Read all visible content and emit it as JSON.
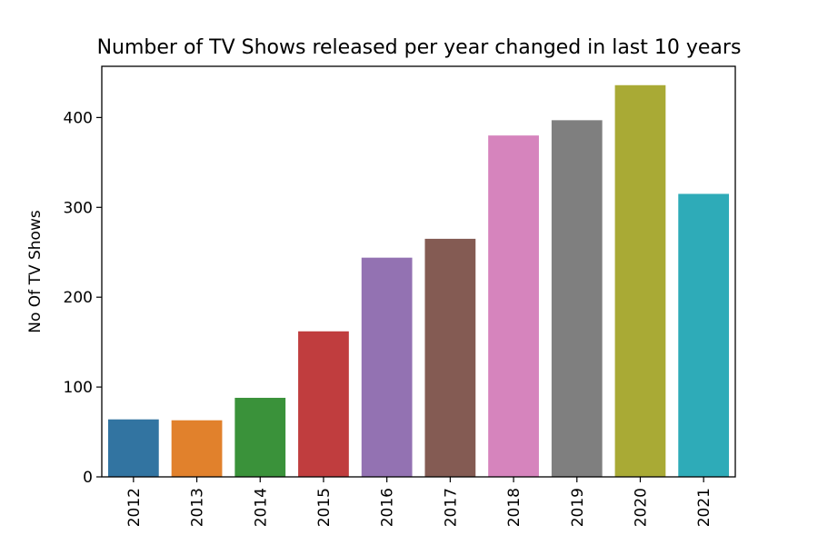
{
  "chart_data": {
    "type": "bar",
    "title": "Number of TV Shows released per year changed in last 10 years",
    "xlabel": "",
    "ylabel": "No Of TV Shows",
    "categories": [
      "2012",
      "2013",
      "2014",
      "2015",
      "2016",
      "2017",
      "2018",
      "2019",
      "2020",
      "2021"
    ],
    "values": [
      64,
      63,
      88,
      162,
      244,
      265,
      380,
      397,
      436,
      315
    ],
    "colors": [
      "#3274a1",
      "#e1812c",
      "#3a923a",
      "#c03d3e",
      "#9372b2",
      "#845b53",
      "#d684bd",
      "#7f7f7f",
      "#a9aa35",
      "#2eabb8"
    ],
    "ylim": [
      0,
      457
    ],
    "yticks": [
      0,
      100,
      200,
      300,
      400
    ],
    "ytick_labels": [
      "0",
      "100",
      "200",
      "300",
      "400"
    ],
    "grid": false,
    "legend": "none"
  }
}
